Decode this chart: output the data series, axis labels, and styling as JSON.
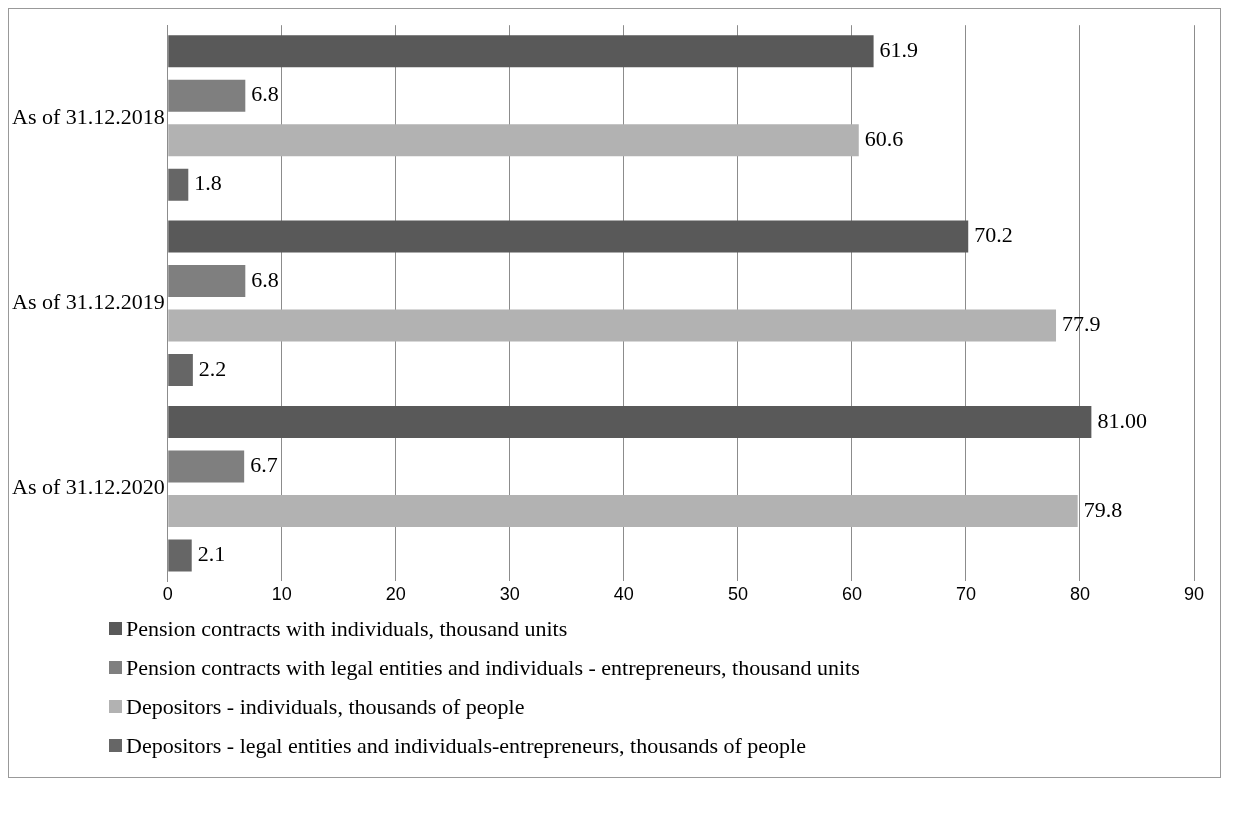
{
  "chart_data": {
    "type": "bar",
    "orientation": "horizontal",
    "categories": [
      "As of 31.12.2018",
      "As of 31.12.2019",
      "As of 31.12.2020"
    ],
    "series": [
      {
        "name": "Pension contracts with individuals, thousand units",
        "color": "#595959",
        "values": [
          61.9,
          70.2,
          81.0
        ],
        "value_labels": [
          "61.9",
          "70.2",
          "81.00"
        ]
      },
      {
        "name": "Pension contracts with legal entities and individuals - entrepreneurs, thousand units",
        "color": "#7f7f7f",
        "values": [
          6.8,
          6.8,
          6.7
        ],
        "value_labels": [
          "6.8",
          "6.8",
          "6.7"
        ]
      },
      {
        "name": "Depositors - individuals, thousands of people",
        "color": "#b2b2b2",
        "values": [
          60.6,
          77.9,
          79.8
        ],
        "value_labels": [
          "60.6",
          "77.9",
          "79.8"
        ]
      },
      {
        "name": "Depositors - legal entities and individuals-entrepreneurs, thousands of people",
        "color": "#666666",
        "values": [
          1.8,
          2.2,
          2.1
        ],
        "value_labels": [
          "1.8",
          "2.2",
          "2.1"
        ]
      }
    ],
    "xlim": [
      0,
      90
    ],
    "xticks": [
      0,
      10,
      20,
      30,
      40,
      50,
      60,
      70,
      80,
      90
    ],
    "grid": "x",
    "legend": "bottom"
  }
}
